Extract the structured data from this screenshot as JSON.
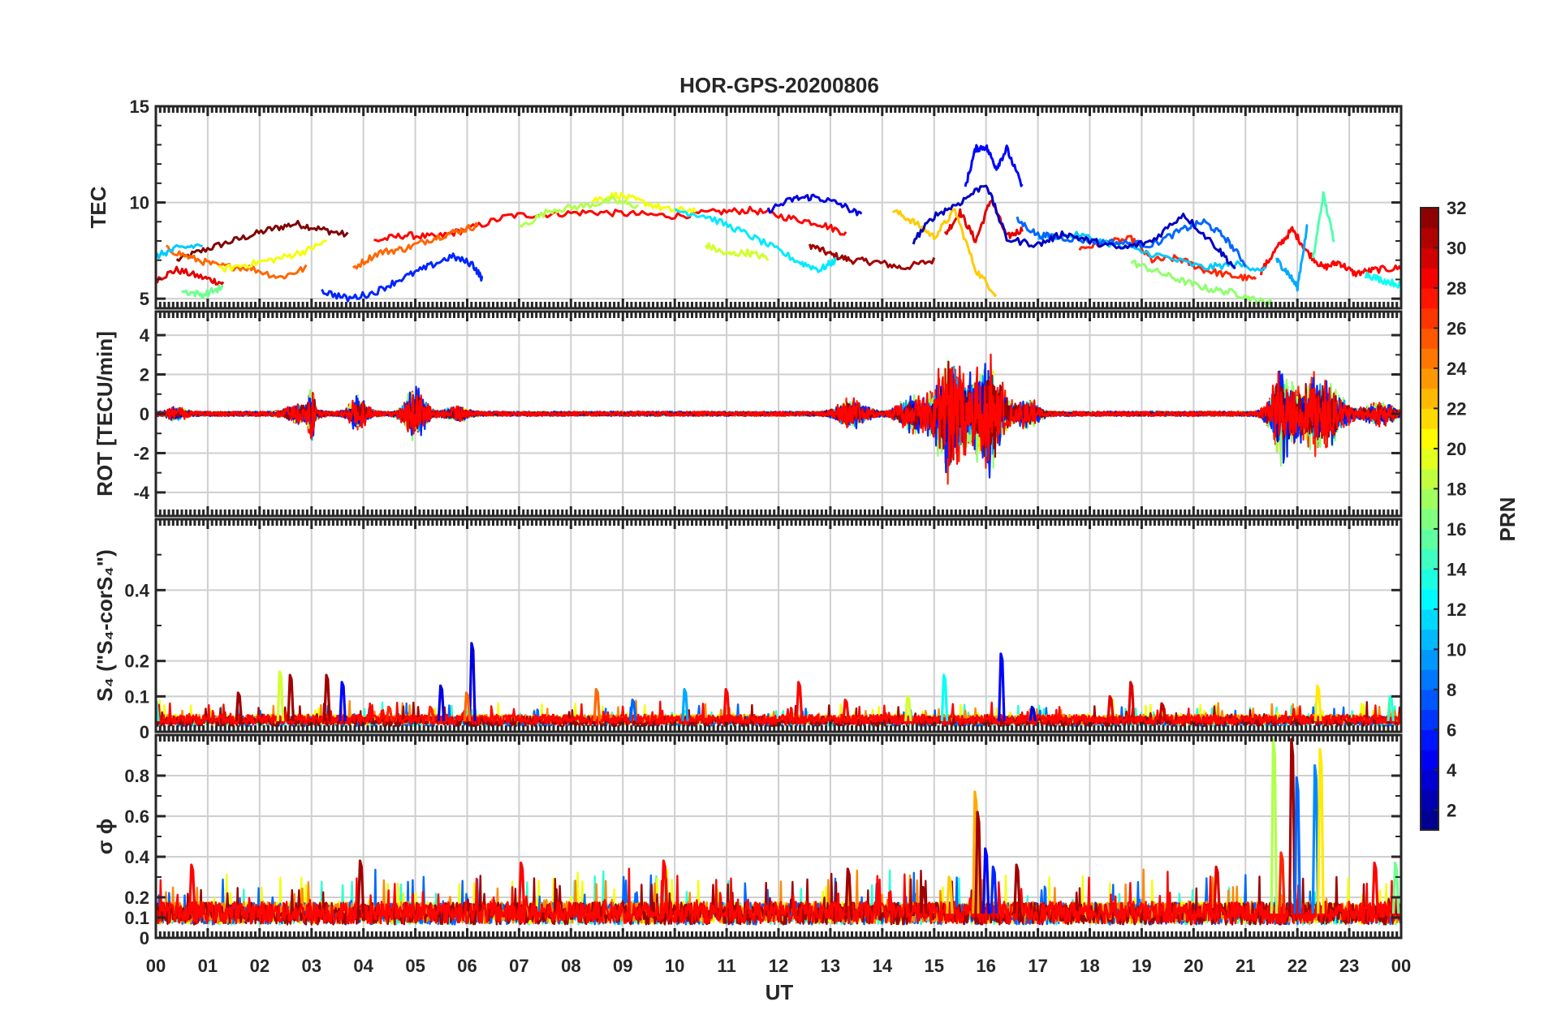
{
  "chart_data": {
    "type": "line",
    "title": "HOR-GPS-20200806",
    "xlabel": "UT",
    "x_ticks": [
      "00",
      "01",
      "02",
      "03",
      "04",
      "05",
      "06",
      "07",
      "08",
      "09",
      "10",
      "11",
      "12",
      "13",
      "14",
      "15",
      "16",
      "17",
      "18",
      "19",
      "20",
      "21",
      "22",
      "23",
      "00"
    ],
    "xlim": [
      0,
      24
    ],
    "grid": true,
    "colorbar": {
      "label": "PRN",
      "range": [
        1,
        32
      ],
      "ticks": [
        "32",
        "30",
        "28",
        "26",
        "24",
        "22",
        "20",
        "18",
        "16",
        "14",
        "12",
        "10",
        "8",
        "6",
        "4",
        "2"
      ],
      "colormap": "jet"
    },
    "panels": [
      {
        "ylabel": "TEC",
        "ylim": [
          4.5,
          15
        ],
        "yticks": [
          "5",
          "10",
          "15"
        ],
        "series": [
          {
            "prn": 32,
            "x": [
              0.4,
              1.0,
              1.6,
              2.2,
              2.7,
              3.2,
              3.7
            ],
            "y": [
              7.0,
              7.6,
              8.1,
              8.6,
              8.9,
              8.6,
              8.3
            ]
          },
          {
            "prn": 31,
            "x": [
              12.6,
              13.0,
              13.4,
              13.9,
              14.4,
              15.0
            ],
            "y": [
              7.8,
              7.3,
              7.0,
              6.9,
              6.6,
              7.0
            ]
          },
          {
            "prn": 29,
            "x": [
              0.0,
              0.4,
              0.9,
              1.3
            ],
            "y": [
              6.0,
              6.5,
              6.1,
              5.8
            ]
          },
          {
            "prn": 28,
            "x": [
              4.2,
              4.8,
              5.4,
              6.0,
              6.8,
              7.6,
              8.4,
              9.2,
              10.0,
              10.8,
              11.5,
              12.2,
              12.8,
              13.3
            ],
            "y": [
              8.0,
              8.3,
              8.2,
              8.6,
              9.3,
              9.4,
              9.5,
              9.4,
              9.3,
              9.5,
              9.6,
              9.2,
              8.9,
              8.4
            ]
          },
          {
            "prn": 29,
            "x": [
              15.2,
              15.5,
              15.8,
              16.1,
              16.4,
              16.7
            ],
            "y": [
              8.3,
              9.5,
              8.0,
              10.2,
              8.2,
              8.6
            ]
          },
          {
            "prn": 28,
            "x": [
              21.3,
              21.6,
              21.9,
              22.2,
              22.5,
              22.8,
              23.1,
              23.5,
              24.0
            ],
            "y": [
              6.4,
              7.6,
              8.6,
              7.4,
              6.6,
              6.9,
              6.3,
              6.5,
              6.6
            ]
          },
          {
            "prn": 27,
            "x": [
              17.8,
              18.3,
              18.8,
              19.2,
              19.7,
              20.2,
              20.7,
              21.2
            ],
            "y": [
              7.6,
              7.9,
              8.1,
              7.0,
              7.1,
              6.5,
              6.2,
              6.0
            ]
          },
          {
            "prn": 25,
            "x": [
              0.2,
              0.7,
              1.2,
              1.8,
              2.4,
              2.9
            ],
            "y": [
              7.6,
              7.1,
              6.7,
              6.6,
              6.1,
              6.6
            ]
          },
          {
            "prn": 25,
            "x": [
              3.8,
              4.3,
              4.8,
              5.3,
              5.8,
              6.2
            ],
            "y": [
              6.6,
              7.4,
              7.6,
              8.1,
              8.5,
              8.8
            ]
          },
          {
            "prn": 22,
            "x": [
              14.2,
              14.6,
              15.0,
              15.4,
              15.8,
              16.2
            ],
            "y": [
              9.6,
              9.0,
              8.2,
              9.6,
              6.5,
              5.2
            ]
          },
          {
            "prn": 20,
            "x": [
              8.4,
              8.9,
              9.4,
              9.9,
              10.4
            ],
            "y": [
              10.1,
              10.4,
              10.0,
              9.6,
              9.6
            ]
          },
          {
            "prn": 20,
            "x": [
              1.2,
              1.8,
              2.4,
              2.9,
              3.3
            ],
            "y": [
              6.5,
              6.8,
              7.1,
              7.5,
              8.0
            ]
          },
          {
            "prn": 19,
            "x": [
              10.6,
              11.0,
              11.4,
              11.8
            ],
            "y": [
              7.8,
              7.3,
              7.4,
              7.1
            ]
          },
          {
            "prn": 18,
            "x": [
              7.0,
              7.6,
              8.2,
              8.8,
              9.3
            ],
            "y": [
              8.7,
              9.6,
              9.8,
              10.1,
              9.8
            ]
          },
          {
            "prn": 17,
            "x": [
              18.8,
              19.3,
              19.8,
              20.3,
              20.8,
              21.2,
              21.5
            ],
            "y": [
              6.9,
              6.4,
              5.9,
              5.5,
              5.3,
              4.9,
              4.8
            ]
          },
          {
            "prn": 16,
            "x": [
              0.5,
              0.9,
              1.3
            ],
            "y": [
              5.4,
              5.2,
              5.6
            ]
          },
          {
            "prn": 15,
            "x": [
              22.3,
              22.5,
              22.7
            ],
            "y": [
              7.0,
              10.4,
              8.1
            ]
          },
          {
            "prn": 13,
            "x": [
              23.3,
              23.6,
              24.0
            ],
            "y": [
              6.3,
              6.0,
              5.7
            ]
          },
          {
            "prn": 12,
            "x": [
              10.0,
              10.6,
              11.2,
              11.8,
              12.4,
              12.8,
              13.1
            ],
            "y": [
              9.6,
              9.3,
              8.6,
              7.8,
              6.9,
              6.5,
              7.0
            ]
          },
          {
            "prn": 11,
            "x": [
              17.0,
              17.8,
              18.6,
              19.4,
              20.2,
              20.8,
              21.4
            ],
            "y": [
              8.2,
              8.3,
              7.7,
              7.2,
              6.6,
              6.8,
              6.5
            ]
          },
          {
            "prn": 11,
            "x": [
              0.0,
              0.4,
              0.9
            ],
            "y": [
              7.2,
              7.6,
              7.8
            ]
          },
          {
            "prn": 10,
            "x": [
              21.6,
              21.8,
              22.0,
              22.2
            ],
            "y": [
              7.0,
              6.4,
              5.6,
              8.9
            ]
          },
          {
            "prn": 8,
            "x": [
              16.6,
              17.0,
              17.4,
              18.0,
              18.6,
              19.2,
              19.8,
              20.2,
              20.6,
              21.0
            ],
            "y": [
              9.1,
              8.3,
              8.2,
              8.0,
              7.9,
              7.8,
              8.6,
              9.0,
              8.2,
              6.8
            ]
          },
          {
            "prn": 6,
            "x": [
              3.2,
              3.7,
              4.2,
              4.7,
              5.2,
              5.7,
              6.1,
              6.3
            ],
            "y": [
              5.4,
              5.0,
              5.3,
              6.0,
              6.6,
              7.2,
              6.8,
              6.0
            ]
          },
          {
            "prn": 5,
            "x": [
              15.6,
              15.8,
              16.0,
              16.2,
              16.4,
              16.7
            ],
            "y": [
              10.8,
              12.8,
              12.9,
              11.8,
              12.8,
              10.8
            ]
          },
          {
            "prn": 4,
            "x": [
              11.8,
              12.3,
              12.7,
              13.2,
              13.6
            ],
            "y": [
              9.6,
              10.2,
              10.3,
              9.9,
              9.3
            ]
          },
          {
            "prn": 3,
            "x": [
              14.6,
              15.0,
              15.5,
              16.0,
              16.4,
              17.0,
              17.5,
              18.0,
              18.6,
              19.2,
              19.8,
              20.4,
              20.8
            ],
            "y": [
              8.0,
              9.3,
              10.0,
              11.0,
              8.1,
              7.8,
              8.4,
              8.0,
              7.6,
              8.0,
              9.4,
              7.8,
              6.6
            ]
          }
        ]
      },
      {
        "ylabel": "ROT [TECU/min]",
        "ylim": [
          -5.2,
          5.2
        ],
        "yticks": [
          "4",
          "2",
          "0",
          "-2",
          "-4"
        ],
        "bursts": [
          {
            "center": 0.4,
            "width": 0.5,
            "amp": 0.3
          },
          {
            "center": 2.8,
            "width": 0.8,
            "amp": 0.5
          },
          {
            "center": 3.0,
            "width": 0.15,
            "amp": 1.8
          },
          {
            "center": 3.9,
            "width": 0.5,
            "amp": 0.9
          },
          {
            "center": 5.0,
            "width": 0.6,
            "amp": 1.4
          },
          {
            "center": 5.8,
            "width": 0.6,
            "amp": 0.4
          },
          {
            "center": 13.4,
            "width": 0.8,
            "amp": 0.8
          },
          {
            "center": 14.6,
            "width": 0.8,
            "amp": 1.0
          },
          {
            "center": 15.3,
            "width": 0.8,
            "amp": 3.6
          },
          {
            "center": 16.0,
            "width": 0.9,
            "amp": 3.5
          },
          {
            "center": 16.8,
            "width": 0.6,
            "amp": 0.8
          },
          {
            "center": 21.7,
            "width": 0.6,
            "amp": 2.6
          },
          {
            "center": 22.4,
            "width": 1.2,
            "amp": 2.3
          },
          {
            "center": 23.6,
            "width": 0.8,
            "amp": 0.6
          }
        ]
      },
      {
        "ylabel": "S₄ (\"S₄-corS₄\")",
        "ylim": [
          0,
          0.6
        ],
        "yticks": [
          "0.4",
          "0.2",
          "0.1",
          "0"
        ],
        "baseline": 0.03,
        "spikes": [
          {
            "x": 0.0,
            "y": 0.09,
            "prn": 14
          },
          {
            "x": 1.6,
            "y": 0.11,
            "prn": 31
          },
          {
            "x": 2.4,
            "y": 0.17,
            "prn": 19
          },
          {
            "x": 2.6,
            "y": 0.16,
            "prn": 31
          },
          {
            "x": 3.3,
            "y": 0.16,
            "prn": 31
          },
          {
            "x": 3.6,
            "y": 0.14,
            "prn": 5
          },
          {
            "x": 4.5,
            "y": 0.07,
            "prn": 27
          },
          {
            "x": 5.3,
            "y": 0.07,
            "prn": 27
          },
          {
            "x": 5.5,
            "y": 0.13,
            "prn": 4
          },
          {
            "x": 6.1,
            "y": 0.25,
            "prn": 4
          },
          {
            "x": 6.0,
            "y": 0.11,
            "prn": 25
          },
          {
            "x": 8.5,
            "y": 0.12,
            "prn": 25
          },
          {
            "x": 9.2,
            "y": 0.09,
            "prn": 8
          },
          {
            "x": 10.2,
            "y": 0.12,
            "prn": 10
          },
          {
            "x": 11.0,
            "y": 0.12,
            "prn": 28
          },
          {
            "x": 12.4,
            "y": 0.14,
            "prn": 28
          },
          {
            "x": 13.3,
            "y": 0.09,
            "prn": 28
          },
          {
            "x": 15.2,
            "y": 0.16,
            "prn": 13
          },
          {
            "x": 14.5,
            "y": 0.1,
            "prn": 19
          },
          {
            "x": 16.3,
            "y": 0.22,
            "prn": 5
          },
          {
            "x": 16.9,
            "y": 0.07,
            "prn": 4
          },
          {
            "x": 18.4,
            "y": 0.1,
            "prn": 29
          },
          {
            "x": 18.8,
            "y": 0.14,
            "prn": 29
          },
          {
            "x": 19.4,
            "y": 0.08,
            "prn": 30
          },
          {
            "x": 22.4,
            "y": 0.13,
            "prn": 21
          },
          {
            "x": 23.8,
            "y": 0.1,
            "prn": 14
          }
        ]
      },
      {
        "ylabel": "σ ϕ",
        "ylim": [
          0,
          1.0
        ],
        "yticks": [
          "0.8",
          "0.6",
          "0.4",
          "0.2",
          "0.1",
          "0"
        ],
        "baseline": 0.12,
        "spikes": [
          {
            "x": 0.7,
            "y": 0.36,
            "prn": 28
          },
          {
            "x": 3.95,
            "y": 0.38,
            "prn": 31
          },
          {
            "x": 7.05,
            "y": 0.37,
            "prn": 28
          },
          {
            "x": 9.8,
            "y": 0.38,
            "prn": 28
          },
          {
            "x": 13.35,
            "y": 0.34,
            "prn": 31
          },
          {
            "x": 14.8,
            "y": 0.25,
            "prn": 31
          },
          {
            "x": 15.3,
            "y": 0.3,
            "prn": 22
          },
          {
            "x": 15.8,
            "y": 0.72,
            "prn": 23
          },
          {
            "x": 15.85,
            "y": 0.62,
            "prn": 31
          },
          {
            "x": 16.0,
            "y": 0.44,
            "prn": 5
          },
          {
            "x": 16.15,
            "y": 0.35,
            "prn": 6
          },
          {
            "x": 16.6,
            "y": 0.36,
            "prn": 31
          },
          {
            "x": 20.45,
            "y": 0.35,
            "prn": 29
          },
          {
            "x": 21.55,
            "y": 0.98,
            "prn": 18
          },
          {
            "x": 21.7,
            "y": 0.42,
            "prn": 27
          },
          {
            "x": 21.9,
            "y": 0.98,
            "prn": 31
          },
          {
            "x": 22.0,
            "y": 0.79,
            "prn": 8
          },
          {
            "x": 22.35,
            "y": 0.85,
            "prn": 9
          },
          {
            "x": 22.45,
            "y": 0.93,
            "prn": 21
          },
          {
            "x": 23.5,
            "y": 0.37,
            "prn": 28
          },
          {
            "x": 23.9,
            "y": 0.37,
            "prn": 16
          }
        ]
      }
    ]
  }
}
